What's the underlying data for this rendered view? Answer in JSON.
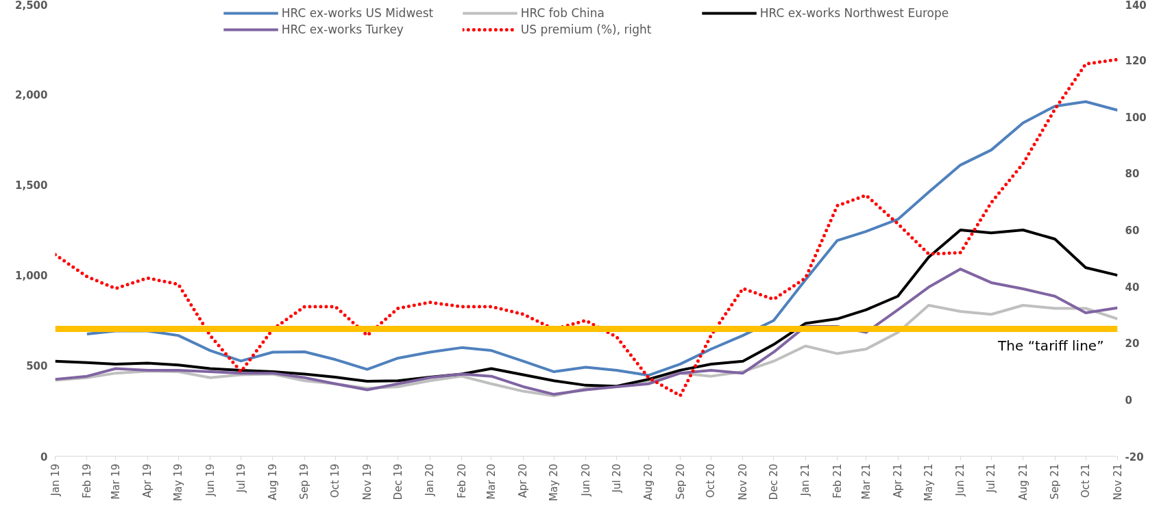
{
  "chart_data": {
    "type": "line",
    "x": [
      "2019-01",
      "2019-02",
      "2019-03",
      "2019-04",
      "2019-05",
      "2019-06",
      "2019-07",
      "2019-08",
      "2019-09",
      "2019-10",
      "2019-11",
      "2019-12",
      "2020-01",
      "2020-02",
      "2020-03",
      "2020-04",
      "2020-05",
      "2020-06",
      "2020-07",
      "2020-08",
      "2020-09",
      "2020-10",
      "2020-11",
      "2020-12",
      "2021-01",
      "2021-02",
      "2021-03",
      "2021-04",
      "2021-05",
      "2021-06",
      "2021-07",
      "2021-08",
      "2021-09",
      "2021-10",
      "2021-11"
    ],
    "series": [
      {
        "name": "HRC ex-works US Midwest",
        "color": "#4f81bd",
        "line_style": "solid",
        "values": [
          null,
          675,
          692,
          692,
          667,
          584,
          526,
          575,
          577,
          534,
          480,
          542,
          575,
          600,
          584,
          525,
          467,
          492,
          475,
          447,
          509,
          592,
          667,
          750,
          975,
          1192,
          1242,
          1309,
          1459,
          1609,
          1692,
          1842,
          1934,
          1959,
          1912
        ]
      },
      {
        "name": "HRC fob China",
        "color": "#bfbfbf",
        "line_style": "solid",
        "values": [
          420,
          434,
          459,
          470,
          467,
          434,
          450,
          454,
          417,
          400,
          375,
          384,
          417,
          442,
          400,
          359,
          334,
          375,
          384,
          417,
          459,
          442,
          467,
          525,
          609,
          567,
          592,
          684,
          834,
          800,
          784,
          834,
          817,
          817,
          759
        ]
      },
      {
        "name": "HRC ex-works Northwest Europe",
        "color": "#000000",
        "line_style": "solid",
        "values": [
          525,
          517,
          509,
          514,
          504,
          484,
          475,
          467,
          454,
          437,
          414,
          417,
          437,
          454,
          484,
          450,
          417,
          392,
          387,
          425,
          475,
          509,
          525,
          617,
          734,
          759,
          809,
          884,
          1100,
          1250,
          1234,
          1250,
          1200,
          1042,
          1000
        ]
      },
      {
        "name": "HRC ex-works Turkey",
        "color": "#8064a2",
        "line_style": "solid",
        "values": [
          425,
          442,
          484,
          475,
          475,
          467,
          459,
          459,
          434,
          400,
          367,
          400,
          434,
          454,
          442,
          384,
          342,
          367,
          384,
          400,
          459,
          475,
          459,
          575,
          717,
          717,
          684,
          809,
          934,
          1034,
          959,
          925,
          884,
          792,
          820
        ]
      },
      {
        "name": "US premium (%), right",
        "color": "#ff0000",
        "line_style": "dotted",
        "axis": "y2",
        "values": [
          51.3,
          43.5,
          39.3,
          43,
          40.8,
          22.7,
          9.9,
          24.9,
          32.9,
          32.9,
          22.7,
          32.3,
          34.4,
          32.9,
          32.9,
          30.2,
          24.9,
          28,
          22.2,
          7.8,
          1.4,
          22.7,
          39.3,
          35.5,
          43,
          68.6,
          72.3,
          62.2,
          51.5,
          52,
          69.7,
          83.5,
          102.7,
          118.7,
          120.3
        ]
      }
    ],
    "xlim": [
      "2019-01",
      "2021-11"
    ],
    "xticks": [
      {
        "value": "2019-01",
        "label": "Jan 19"
      },
      {
        "value": "2019-02",
        "label": "Feb 19"
      },
      {
        "value": "2019-03",
        "label": "Mar 19"
      },
      {
        "value": "2019-04",
        "label": "Apr 19"
      },
      {
        "value": "2019-05",
        "label": "May 19"
      },
      {
        "value": "2019-06",
        "label": "Jun 19"
      },
      {
        "value": "2019-07",
        "label": "Jul 19"
      },
      {
        "value": "2019-08",
        "label": "Aug 19"
      },
      {
        "value": "2019-09",
        "label": "Sep 19"
      },
      {
        "value": "2019-10",
        "label": "Oct 19"
      },
      {
        "value": "2019-11",
        "label": "Nov 19"
      },
      {
        "value": "2019-12",
        "label": "Dec 19"
      },
      {
        "value": "2020-01",
        "label": "Jan 20"
      },
      {
        "value": "2020-02",
        "label": "Feb 20"
      },
      {
        "value": "2020-03",
        "label": "Mar 20"
      },
      {
        "value": "2020-04",
        "label": "Apr 20"
      },
      {
        "value": "2020-05",
        "label": "May 20"
      },
      {
        "value": "2020-06",
        "label": "Jun 20"
      },
      {
        "value": "2020-07",
        "label": "Jul 20"
      },
      {
        "value": "2020-08",
        "label": "Aug 20"
      },
      {
        "value": "2020-09",
        "label": "Sep 20"
      },
      {
        "value": "2020-10",
        "label": "Oct 20"
      },
      {
        "value": "2020-11",
        "label": "Nov 20"
      },
      {
        "value": "2020-12",
        "label": "Dec 20"
      },
      {
        "value": "2021-01",
        "label": "Jan 21"
      },
      {
        "value": "2021-02",
        "label": "Feb 21"
      },
      {
        "value": "2021-03",
        "label": "Mar 21"
      },
      {
        "value": "2021-04",
        "label": "Apr 21"
      },
      {
        "value": "2021-05",
        "label": "May 21"
      },
      {
        "value": "2021-06",
        "label": "Jun 21"
      },
      {
        "value": "2021-07",
        "label": "Jul 21"
      },
      {
        "value": "2021-08",
        "label": "Aug 21"
      },
      {
        "value": "2021-09",
        "label": "Sep 21"
      },
      {
        "value": "2021-10",
        "label": "Oct 21"
      },
      {
        "value": "2021-11",
        "label": "Nov 21"
      }
    ],
    "ylim": [
      0,
      2500
    ],
    "yticks": [
      0,
      {
        "value": 500,
        "label": "500"
      },
      {
        "value": 1000,
        "label": "1,000"
      },
      {
        "value": 1500,
        "label": "1,500"
      },
      {
        "value": 2000,
        "label": "2,000"
      },
      {
        "value": 2500,
        "label": "2,500"
      }
    ],
    "y2lim": [
      -20,
      140
    ],
    "y2ticks": [
      -20,
      0,
      20,
      40,
      60,
      80,
      100,
      120,
      140
    ],
    "ref_lines": [
      {
        "axis": "y2",
        "value": 25,
        "label": "The “tariff line”",
        "color": "#ffc000"
      }
    ],
    "grid": false,
    "legend": "top",
    "marker": "none"
  }
}
